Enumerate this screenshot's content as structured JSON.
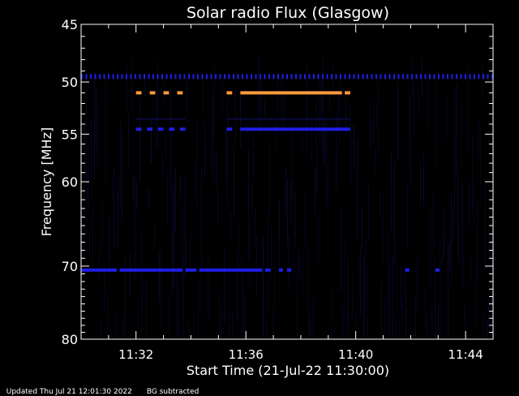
{
  "chart_data": {
    "type": "heatmap",
    "title": "Solar radio Flux (Glasgow)",
    "xlabel": "Start Time (21-Jul-22 11:30:00)",
    "ylabel": "Frequency [MHz]",
    "x_ticks": [
      "11:32",
      "11:36",
      "11:40",
      "11:44"
    ],
    "x_tick_minutes": [
      2,
      6,
      10,
      14
    ],
    "xlim_minutes": [
      0,
      15
    ],
    "y_ticks": [
      45,
      50,
      55,
      60,
      70,
      80
    ],
    "ylim": [
      45,
      80
    ],
    "colors": {
      "background": "#000000",
      "low": "#0a0a3c",
      "mid": "#1e1ee6",
      "high": "#ff9a3c"
    },
    "bands": [
      {
        "freq": 49.5,
        "level": "mid",
        "segments": [
          [
            0,
            15
          ]
        ],
        "dashed": true
      },
      {
        "freq": 51.0,
        "level": "high",
        "segments": [
          [
            2.0,
            2.2
          ],
          [
            2.5,
            2.7
          ],
          [
            3.0,
            3.2
          ],
          [
            3.5,
            3.7
          ],
          [
            5.3,
            5.5
          ],
          [
            5.8,
            9.5
          ],
          [
            9.6,
            9.8
          ]
        ],
        "dashed": false
      },
      {
        "freq": 53.5,
        "level": "low",
        "segments": [
          [
            2.0,
            3.8
          ],
          [
            5.3,
            9.8
          ]
        ],
        "dashed": false
      },
      {
        "freq": 54.5,
        "level": "mid",
        "segments": [
          [
            2.0,
            2.2
          ],
          [
            2.4,
            2.6
          ],
          [
            2.8,
            3.0
          ],
          [
            3.2,
            3.4
          ],
          [
            3.6,
            3.8
          ],
          [
            5.3,
            5.5
          ],
          [
            5.8,
            9.8
          ]
        ],
        "dashed": false
      },
      {
        "freq": 70.5,
        "level": "mid",
        "segments": [
          [
            0,
            1.3
          ],
          [
            1.4,
            3.7
          ],
          [
            3.8,
            4.2
          ],
          [
            4.3,
            6.6
          ],
          [
            6.7,
            6.9
          ],
          [
            7.2,
            7.35
          ],
          [
            7.5,
            7.65
          ],
          [
            11.8,
            11.95
          ],
          [
            12.9,
            13.05
          ]
        ],
        "dashed": false
      }
    ]
  },
  "footer": {
    "updated": "Updated Thu Jul 21 12:01:30 2022",
    "bg_note": "BG subtracted"
  }
}
